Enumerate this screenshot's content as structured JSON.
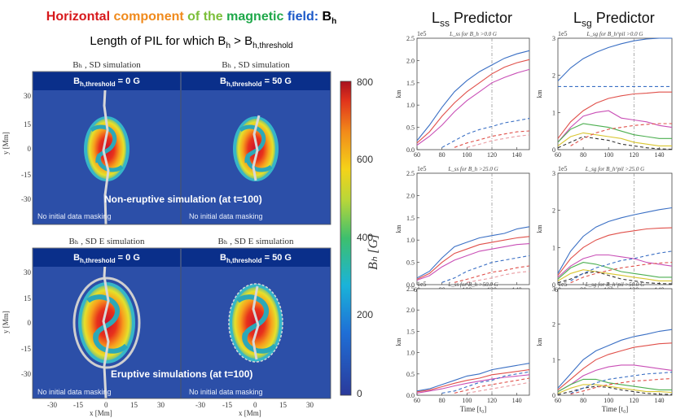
{
  "title": {
    "word1": "Horizontal",
    "word2": "component",
    "word3": "of the",
    "word4": "magnetic",
    "word5": "field:",
    "sym": "B",
    "sub": "h",
    "colors": [
      "#d7191c",
      "#f08a1c",
      "#7cbf3a",
      "#1fa84a",
      "#1a58c8",
      "#000000"
    ]
  },
  "subtitle": {
    "pre": "Length of PIL for which B",
    "sub1": "h",
    "mid": " > B",
    "sub2": "h,threshold"
  },
  "left": {
    "top_row": {
      "captions": [
        "Bₕ , SD simulation",
        "Bₕ , SD simulation"
      ],
      "thresholds": [
        "0 G",
        "50 G"
      ],
      "label": "Non-eruptive simulation (at t=100)",
      "masking": [
        "No initial data masking",
        "No initial data masking"
      ]
    },
    "bottom_row": {
      "captions": [
        "Bₕ , SD E simulation",
        "Bₕ , SD E simulation"
      ],
      "thresholds": [
        "0 G",
        "50 G"
      ],
      "label": "Eruptive simulations (at t=100)",
      "masking": [
        "No initial data masking",
        "No initial data masking"
      ]
    },
    "banner_prefix": "B",
    "banner_sub": "h,threshold",
    "y_label": "y [Mm]",
    "x_label": "x [Mm]",
    "y_ticks": [
      "30",
      "15",
      "0",
      "-15",
      "-30"
    ],
    "x_ticks": [
      "-30",
      "-15",
      "0",
      "15",
      "30"
    ],
    "colorbar": {
      "label": "Bₕ [G]",
      "ticks": [
        "800",
        "600",
        "400",
        "200",
        "0"
      ],
      "min": 0,
      "max": 800
    }
  },
  "right": {
    "headers": {
      "lss": "L",
      "lss_sub": "ss",
      "lss_rest": " Predictor",
      "lsg": "L",
      "lsg_sub": "sg",
      "lsg_rest": " Predictor"
    },
    "y_unit": "km",
    "x_label": "Time [t₀]",
    "scale": "1e5"
  },
  "chart_data": [
    {
      "type": "line",
      "title": "L_ss for B_h >0.0 G",
      "xlabel": "",
      "ylabel": "km",
      "x": [
        60,
        70,
        80,
        90,
        100,
        110,
        120,
        130,
        140,
        150
      ],
      "xlim": [
        60,
        150
      ],
      "ylim": [
        0,
        2.5
      ],
      "yticks": [
        0,
        0.5,
        1.0,
        1.5,
        2.0,
        2.5
      ],
      "vline": 120,
      "series": [
        {
          "name": "blue",
          "color": "#3a6fc4",
          "style": "solid",
          "values": [
            0.2,
            0.55,
            0.95,
            1.3,
            1.55,
            1.75,
            1.9,
            2.05,
            2.15,
            2.22
          ]
        },
        {
          "name": "red",
          "color": "#e0504a",
          "style": "solid",
          "values": [
            0.15,
            0.4,
            0.75,
            1.05,
            1.3,
            1.5,
            1.7,
            1.85,
            1.95,
            2.02
          ]
        },
        {
          "name": "magenta",
          "color": "#c94fb6",
          "style": "solid",
          "values": [
            0.1,
            0.3,
            0.55,
            0.85,
            1.1,
            1.3,
            1.5,
            1.62,
            1.72,
            1.8
          ]
        },
        {
          "name": "blue-dash",
          "color": "#3a6fc4",
          "style": "dashed",
          "values": [
            null,
            null,
            0.05,
            0.2,
            0.35,
            0.45,
            0.52,
            0.6,
            0.65,
            0.7
          ]
        },
        {
          "name": "red-dash",
          "color": "#e0504a",
          "style": "dashed",
          "values": [
            null,
            null,
            null,
            0.05,
            0.15,
            0.22,
            0.3,
            0.35,
            0.4,
            0.42
          ]
        },
        {
          "name": "pink-dash",
          "color": "#e99aa0",
          "style": "dashed",
          "values": [
            null,
            null,
            null,
            null,
            0.05,
            0.12,
            0.2,
            0.25,
            0.3,
            0.33
          ]
        }
      ]
    },
    {
      "type": "line",
      "title": "L_sg for B_h^pil >0.0 G",
      "xlabel": "",
      "ylabel": "km",
      "x": [
        60,
        70,
        80,
        90,
        100,
        110,
        120,
        130,
        140,
        150
      ],
      "xlim": [
        60,
        150
      ],
      "ylim": [
        0,
        3
      ],
      "yticks": [
        0,
        1,
        2,
        3
      ],
      "vline": 120,
      "series": [
        {
          "name": "blue",
          "color": "#3a6fc4",
          "style": "solid",
          "values": [
            1.85,
            2.2,
            2.45,
            2.62,
            2.75,
            2.85,
            2.93,
            2.98,
            3.0,
            3.0
          ]
        },
        {
          "name": "blue-dash",
          "color": "#3a6fc4",
          "style": "dashed",
          "values": [
            1.7,
            1.7,
            1.7,
            1.7,
            1.7,
            1.7,
            1.7,
            1.7,
            1.7,
            1.7
          ]
        },
        {
          "name": "red",
          "color": "#e0504a",
          "style": "solid",
          "values": [
            0.3,
            0.75,
            1.05,
            1.25,
            1.38,
            1.45,
            1.5,
            1.52,
            1.55,
            1.55
          ]
        },
        {
          "name": "magenta",
          "color": "#c94fb6",
          "style": "solid",
          "values": [
            0.2,
            0.6,
            0.9,
            1.0,
            1.05,
            0.85,
            0.8,
            0.75,
            0.65,
            0.6
          ]
        },
        {
          "name": "green",
          "color": "#4caf50",
          "style": "solid",
          "values": [
            0.2,
            0.55,
            0.7,
            0.65,
            0.6,
            0.5,
            0.4,
            0.35,
            0.3,
            0.3
          ]
        },
        {
          "name": "yellow",
          "color": "#d9c630",
          "style": "solid",
          "values": [
            0.1,
            0.35,
            0.45,
            0.4,
            0.35,
            0.3,
            0.2,
            0.15,
            0.1,
            0.1
          ]
        },
        {
          "name": "black-dash",
          "color": "#333333",
          "style": "dashed",
          "values": [
            0.05,
            0.2,
            0.35,
            0.3,
            0.25,
            0.15,
            0.1,
            0.05,
            0.02,
            0.01
          ]
        },
        {
          "name": "red-dash",
          "color": "#e0504a",
          "style": "dashed",
          "values": [
            null,
            0.1,
            0.3,
            0.45,
            0.55,
            0.6,
            0.65,
            0.68,
            0.7,
            0.7
          ]
        }
      ]
    },
    {
      "type": "line",
      "title": "L_ss for B_h >25.0 G",
      "xlabel": "",
      "ylabel": "km",
      "x": [
        60,
        70,
        80,
        90,
        100,
        110,
        120,
        130,
        140,
        150
      ],
      "xlim": [
        60,
        150
      ],
      "ylim": [
        0,
        2.5
      ],
      "yticks": [
        0,
        0.5,
        1.0,
        1.5,
        2.0,
        2.5
      ],
      "vline": 120,
      "series": [
        {
          "name": "blue",
          "color": "#3a6fc4",
          "style": "solid",
          "values": [
            0.15,
            0.3,
            0.6,
            0.85,
            0.95,
            1.05,
            1.1,
            1.15,
            1.25,
            1.3
          ]
        },
        {
          "name": "red",
          "color": "#e0504a",
          "style": "solid",
          "values": [
            0.12,
            0.25,
            0.5,
            0.7,
            0.8,
            0.9,
            0.95,
            1.0,
            1.05,
            1.08
          ]
        },
        {
          "name": "magenta",
          "color": "#c94fb6",
          "style": "solid",
          "values": [
            0.1,
            0.2,
            0.4,
            0.55,
            0.65,
            0.75,
            0.8,
            0.85,
            0.9,
            0.92
          ]
        },
        {
          "name": "blue-dash",
          "color": "#3a6fc4",
          "style": "dashed",
          "values": [
            null,
            null,
            0.05,
            0.15,
            0.3,
            0.4,
            0.5,
            0.55,
            0.6,
            0.65
          ]
        },
        {
          "name": "red-dash",
          "color": "#e0504a",
          "style": "dashed",
          "values": [
            null,
            null,
            null,
            0.05,
            0.12,
            0.2,
            0.28,
            0.32,
            0.38,
            0.42
          ]
        },
        {
          "name": "pink-dash",
          "color": "#e99aa0",
          "style": "dashed",
          "values": [
            null,
            null,
            null,
            null,
            0.05,
            0.1,
            0.15,
            0.22,
            0.27,
            0.3
          ]
        }
      ]
    },
    {
      "type": "line",
      "title": "L_sg for B_h^pil >25.0 G",
      "xlabel": "",
      "ylabel": "km",
      "x": [
        60,
        70,
        80,
        90,
        100,
        110,
        120,
        130,
        140,
        150
      ],
      "xlim": [
        60,
        150
      ],
      "ylim": [
        0,
        3
      ],
      "yticks": [
        0,
        1,
        2,
        3
      ],
      "vline": 120,
      "series": [
        {
          "name": "blue",
          "color": "#3a6fc4",
          "style": "solid",
          "values": [
            0.3,
            0.9,
            1.3,
            1.55,
            1.7,
            1.8,
            1.88,
            1.95,
            2.02,
            2.07
          ]
        },
        {
          "name": "red",
          "color": "#e0504a",
          "style": "solid",
          "values": [
            0.25,
            0.7,
            1.0,
            1.2,
            1.33,
            1.4,
            1.45,
            1.5,
            1.52,
            1.53
          ]
        },
        {
          "name": "magenta",
          "color": "#c94fb6",
          "style": "solid",
          "values": [
            0.2,
            0.5,
            0.7,
            0.8,
            0.8,
            0.75,
            0.7,
            0.6,
            0.55,
            0.5
          ]
        },
        {
          "name": "green",
          "color": "#4caf50",
          "style": "solid",
          "values": [
            0.15,
            0.45,
            0.6,
            0.55,
            0.45,
            0.35,
            0.3,
            0.25,
            0.2,
            0.2
          ]
        },
        {
          "name": "yellow",
          "color": "#d9c630",
          "style": "solid",
          "values": [
            0.1,
            0.3,
            0.4,
            0.35,
            0.3,
            0.25,
            0.2,
            0.15,
            0.1,
            0.1
          ]
        },
        {
          "name": "black-dash",
          "color": "#333333",
          "style": "dashed",
          "values": [
            0.05,
            0.15,
            0.3,
            0.35,
            0.25,
            0.15,
            0.1,
            0.05,
            0.03,
            0.02
          ]
        },
        {
          "name": "blue-dash",
          "color": "#3a6fc4",
          "style": "dashed",
          "values": [
            null,
            0.1,
            0.3,
            0.45,
            0.55,
            0.65,
            0.7,
            0.78,
            0.85,
            0.9
          ]
        },
        {
          "name": "red-dash",
          "color": "#e0504a",
          "style": "dashed",
          "values": [
            null,
            0.05,
            0.2,
            0.3,
            0.38,
            0.45,
            0.5,
            0.55,
            0.58,
            0.6
          ]
        }
      ]
    },
    {
      "type": "line",
      "title": "L_ss for B_h >50.0 G",
      "xlabel": "Time [t0]",
      "ylabel": "km",
      "x": [
        60,
        70,
        80,
        90,
        100,
        110,
        120,
        130,
        140,
        150
      ],
      "xlim": [
        60,
        150
      ],
      "ylim": [
        0,
        2.5
      ],
      "yticks": [
        0,
        0.5,
        1.0,
        1.5,
        2.0,
        2.5
      ],
      "vline": 120,
      "series": [
        {
          "name": "blue",
          "color": "#3a6fc4",
          "style": "solid",
          "values": [
            0.1,
            0.15,
            0.25,
            0.35,
            0.45,
            0.5,
            0.6,
            0.65,
            0.7,
            0.75
          ]
        },
        {
          "name": "red",
          "color": "#e0504a",
          "style": "solid",
          "values": [
            0.08,
            0.12,
            0.2,
            0.28,
            0.35,
            0.4,
            0.48,
            0.52,
            0.56,
            0.6
          ]
        },
        {
          "name": "magenta",
          "color": "#c94fb6",
          "style": "solid",
          "values": [
            0.05,
            0.1,
            0.15,
            0.22,
            0.28,
            0.33,
            0.38,
            0.42,
            0.45,
            0.48
          ]
        },
        {
          "name": "blue-dash",
          "color": "#3a6fc4",
          "style": "dashed",
          "values": [
            null,
            null,
            0.05,
            0.1,
            0.2,
            0.3,
            0.35,
            0.45,
            0.5,
            0.55
          ]
        },
        {
          "name": "red-dash",
          "color": "#e0504a",
          "style": "dashed",
          "values": [
            null,
            null,
            null,
            0.05,
            0.12,
            0.2,
            0.25,
            0.3,
            0.35,
            0.4
          ]
        },
        {
          "name": "pink-dash",
          "color": "#e99aa0",
          "style": "dashed",
          "values": [
            null,
            null,
            null,
            null,
            0.05,
            0.1,
            0.15,
            0.2,
            0.25,
            0.3
          ]
        }
      ]
    },
    {
      "type": "line",
      "title": "L_sg for B_h^pil >50.0 G",
      "xlabel": "Time [t0]",
      "ylabel": "km",
      "x": [
        60,
        70,
        80,
        90,
        100,
        110,
        120,
        130,
        140,
        150
      ],
      "xlim": [
        60,
        150
      ],
      "ylim": [
        0,
        3
      ],
      "yticks": [
        0,
        1,
        2,
        3
      ],
      "vline": 120,
      "series": [
        {
          "name": "blue",
          "color": "#3a6fc4",
          "style": "solid",
          "values": [
            0.2,
            0.6,
            1.0,
            1.25,
            1.4,
            1.55,
            1.65,
            1.72,
            1.8,
            1.85
          ]
        },
        {
          "name": "red",
          "color": "#e0504a",
          "style": "solid",
          "values": [
            0.15,
            0.45,
            0.75,
            1.0,
            1.15,
            1.25,
            1.35,
            1.4,
            1.45,
            1.47
          ]
        },
        {
          "name": "magenta",
          "color": "#c94fb6",
          "style": "solid",
          "values": [
            0.1,
            0.3,
            0.55,
            0.7,
            0.8,
            0.85,
            0.85,
            0.8,
            0.75,
            0.7
          ]
        },
        {
          "name": "green",
          "color": "#4caf50",
          "style": "solid",
          "values": [
            0.1,
            0.3,
            0.45,
            0.45,
            0.35,
            0.3,
            0.25,
            0.2,
            0.15,
            0.15
          ]
        },
        {
          "name": "yellow",
          "color": "#d9c630",
          "style": "solid",
          "values": [
            0.05,
            0.2,
            0.3,
            0.3,
            0.25,
            0.2,
            0.15,
            0.1,
            0.1,
            0.08
          ]
        },
        {
          "name": "black-dash",
          "color": "#333333",
          "style": "dashed",
          "values": [
            0.02,
            0.1,
            0.2,
            0.25,
            0.22,
            0.15,
            0.1,
            0.05,
            0.03,
            0.02
          ]
        },
        {
          "name": "blue-dash",
          "color": "#3a6fc4",
          "style": "dashed",
          "values": [
            null,
            0.05,
            0.2,
            0.35,
            0.45,
            0.5,
            0.55,
            0.6,
            0.62,
            0.65
          ]
        },
        {
          "name": "red-dash",
          "color": "#e0504a",
          "style": "dashed",
          "values": [
            null,
            0.03,
            0.12,
            0.22,
            0.3,
            0.35,
            0.4,
            0.42,
            0.45,
            0.47
          ]
        }
      ]
    }
  ]
}
